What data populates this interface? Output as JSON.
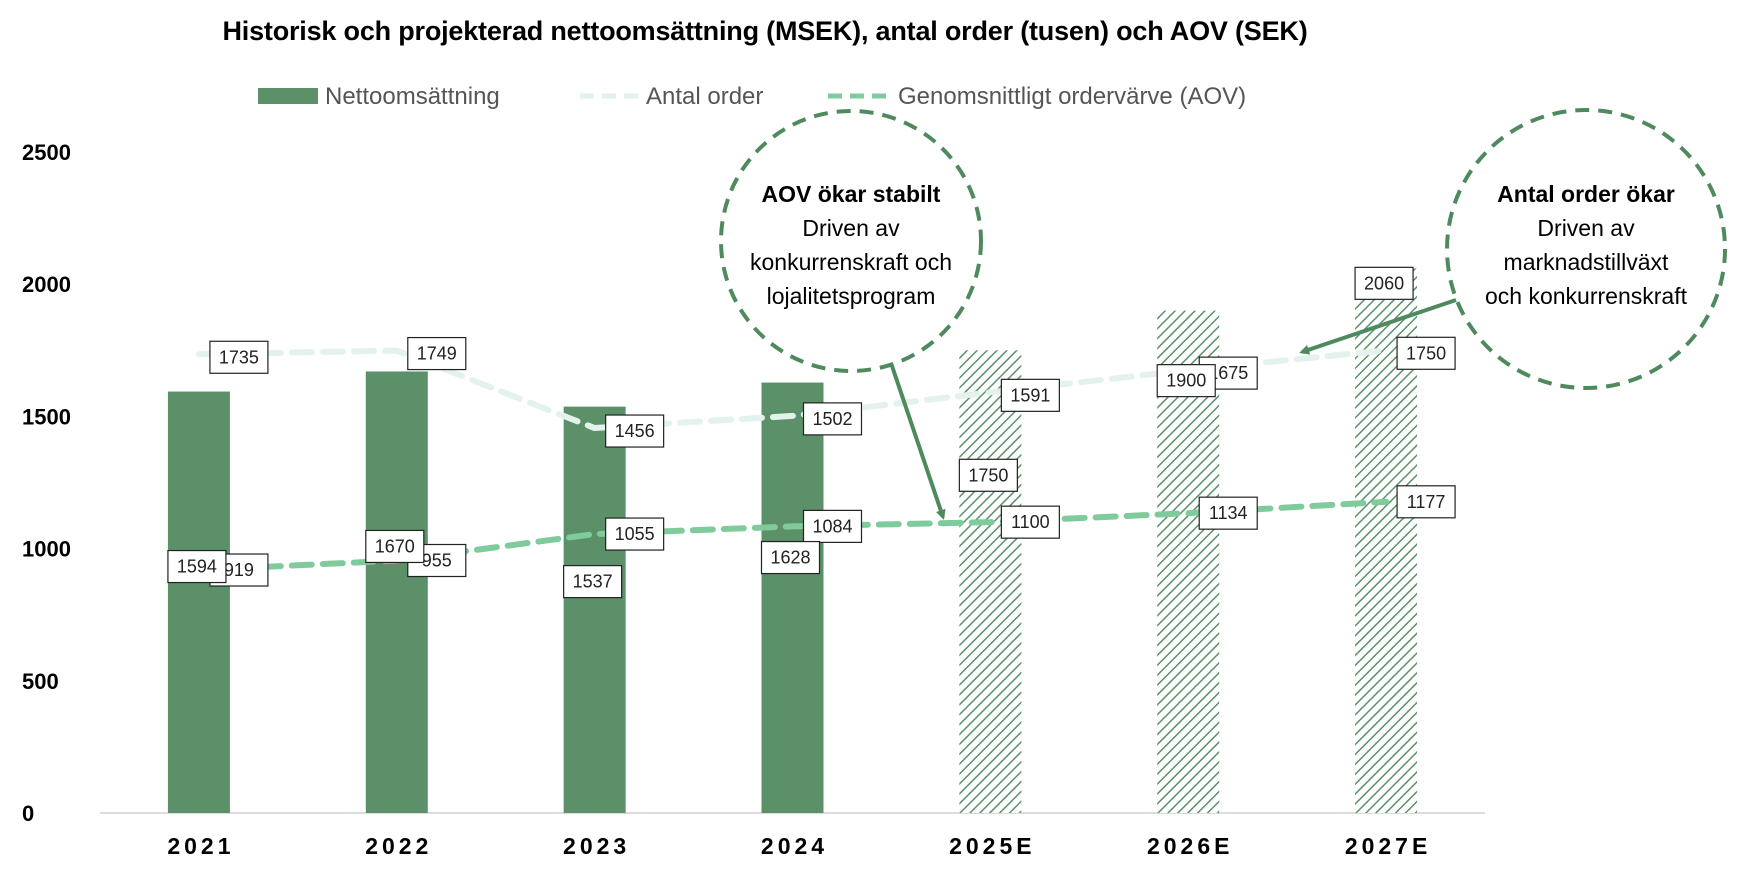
{
  "chart_data": {
    "type": "bar",
    "title": "Historisk och projekterad nettoomsättning (MSEK), antal order (tusen) och AOV (SEK)",
    "categories": [
      "2021",
      "2022",
      "2023",
      "2024",
      "2025E",
      "2026E",
      "2027E"
    ],
    "projected_from_index": 4,
    "ylim": [
      0,
      2500
    ],
    "yticks": [
      0,
      500,
      1000,
      1500,
      2000,
      2500
    ],
    "grid": false,
    "legend_position": "top",
    "series": [
      {
        "name": "Nettoomsättning",
        "kind": "bar",
        "values": [
          1594,
          1670,
          1537,
          1628,
          1750,
          1900,
          2060
        ],
        "color": "#5b9068"
      },
      {
        "name": "Antal order",
        "kind": "line",
        "style": "dashed",
        "values": [
          1735,
          1749,
          1456,
          1502,
          1591,
          1675,
          1750
        ],
        "color": "#e3f2ea"
      },
      {
        "name": "Genomsnittligt ordervärve (AOV)",
        "kind": "line",
        "style": "dashed",
        "values": [
          919,
          955,
          1055,
          1084,
          1100,
          1134,
          1177
        ],
        "color": "#7fcb9c"
      }
    ],
    "annotations": [
      {
        "title": "AOV ökar stabilt",
        "lines": [
          "Driven av",
          "konkurrenskraft och",
          "lojalitetsprogram"
        ],
        "points_to": "Genomsnittligt ordervärve (AOV)"
      },
      {
        "title": "Antal order ökar",
        "lines": [
          "Driven av",
          "marknadstillväxt",
          "och konkurrenskraft"
        ],
        "points_to": "Antal order"
      }
    ]
  }
}
